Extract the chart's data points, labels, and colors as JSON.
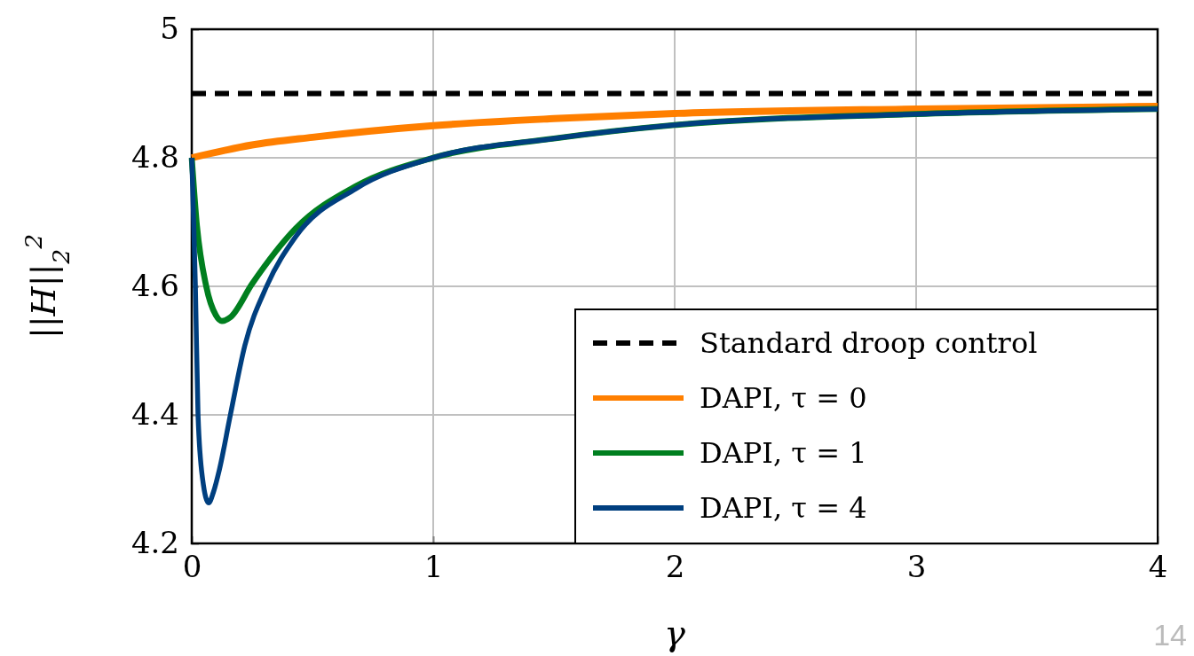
{
  "chart_data": {
    "type": "line",
    "xlabel": "γ",
    "ylabel": "||H||$_{2}$$^{2}$",
    "xlim": [
      0,
      4
    ],
    "ylim": [
      4.2,
      5
    ],
    "xticks": [
      0,
      1,
      2,
      3,
      4
    ],
    "yticks": [
      4.2,
      4.4,
      4.6,
      4.8,
      5
    ],
    "grid": true,
    "legend": "bottom right",
    "annotations": [
      "14"
    ],
    "series": [
      {
        "name": "Standard droop control",
        "color": "#000000",
        "line_style": "dashed",
        "x": [
          0,
          4
        ],
        "values": [
          4.9,
          4.9
        ]
      },
      {
        "name": "DAPI, τ = 0",
        "color": "#ff7f00",
        "x": [
          0,
          0.25,
          0.5,
          1,
          1.5,
          2,
          3,
          4
        ],
        "values": [
          4.8,
          4.82,
          4.832,
          4.85,
          4.861,
          4.869,
          4.876,
          4.88
        ]
      },
      {
        "name": "DAPI, τ = 1",
        "color": "#007f1f",
        "x": [
          0,
          0.02,
          0.06,
          0.1,
          0.125,
          0.16,
          0.25,
          0.43,
          0.68,
          1,
          1.5,
          2,
          3,
          4
        ],
        "values": [
          4.8,
          4.7,
          4.6,
          4.555,
          4.546,
          4.552,
          4.604,
          4.69,
          4.756,
          4.8,
          4.83,
          4.851,
          4.868,
          4.876
        ]
      },
      {
        "name": "DAPI, τ = 4",
        "color": "#003f7f",
        "x": [
          0,
          0.008,
          0.015,
          0.026,
          0.045,
          0.07,
          0.09,
          0.114,
          0.16,
          0.22,
          0.31,
          0.43,
          0.68,
          1,
          1.5,
          2,
          3,
          4
        ],
        "values": [
          4.8,
          4.7,
          4.6,
          4.4,
          4.3,
          4.263,
          4.28,
          4.314,
          4.4,
          4.508,
          4.6,
          4.677,
          4.752,
          4.8,
          4.83,
          4.851,
          4.868,
          4.876
        ]
      }
    ]
  }
}
